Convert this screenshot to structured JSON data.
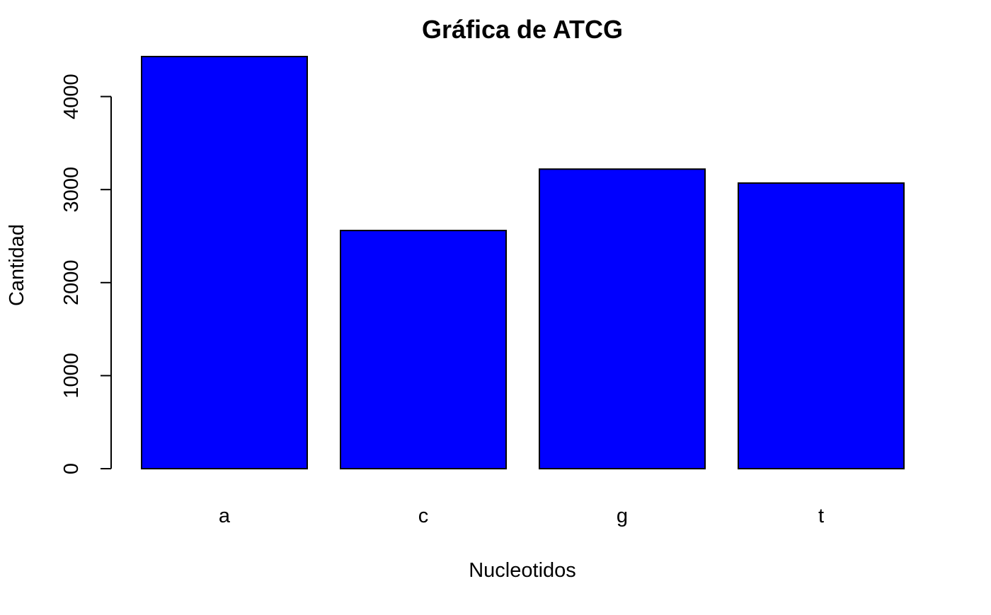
{
  "chart_data": {
    "type": "bar",
    "title": "Gráfica de ATCG",
    "xlabel": "Nucleotidos",
    "ylabel": "Cantidad",
    "categories": [
      "a",
      "c",
      "g",
      "t"
    ],
    "values": [
      4430,
      2560,
      3220,
      3070
    ],
    "ylim": [
      0,
      4430
    ],
    "yticks": [
      0,
      1000,
      2000,
      3000,
      4000
    ],
    "bar_color": "#0000ff",
    "border_color": "#000000",
    "grid": false,
    "legend": "none"
  }
}
